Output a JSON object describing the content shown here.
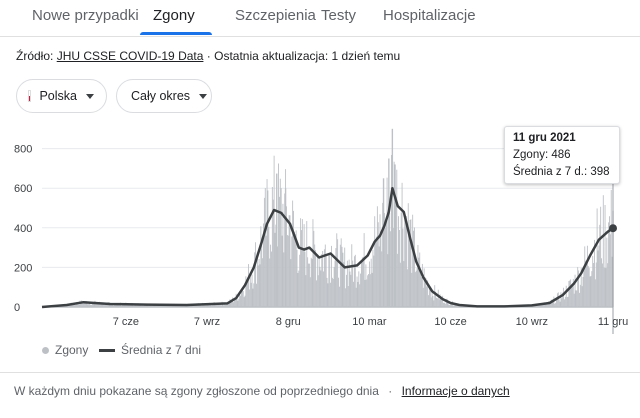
{
  "tabs": [
    {
      "label": "Nowe przypadki"
    },
    {
      "label": "Zgony"
    },
    {
      "label": "Szczepienia"
    },
    {
      "label": "Testy"
    },
    {
      "label": "Hospitalizacje"
    }
  ],
  "active_tab": "Zgony",
  "source": {
    "prefix": "Źródło:",
    "link": "JHU CSSE COVID-19 Data",
    "separator": "·",
    "updated": "Ostatnia aktualizacja: 1 dzień temu"
  },
  "filters": {
    "country": "Polska",
    "period": "Cały okres"
  },
  "tooltip": {
    "date": "11 gru 2021",
    "deaths": "Zgony: 486",
    "average": "Średnia z 7 d.: 398"
  },
  "legend": {
    "bars": "Zgony",
    "line": "Średnia z 7 dni"
  },
  "footer": {
    "text": "W każdym dniu pokazane są zgony zgłoszone od poprzedniego dnia",
    "separator": "·",
    "link": "Informacje o danych"
  },
  "colors": {
    "bars": "#bdc1c6",
    "line": "#3c4043",
    "accent": "#1a73e8"
  },
  "chart_data": {
    "type": "bar",
    "x_ticks": [
      "7 cze",
      "7 wrz",
      "8 gru",
      "10 mar",
      "10 cze",
      "10 wrz",
      "11 gru"
    ],
    "y_ticks": [
      "800",
      "600",
      "400",
      "200",
      "0"
    ],
    "ylim": [
      0,
      900
    ],
    "series": [
      {
        "name": "Średnia z 7 dni",
        "type": "line",
        "x": [
          "2020-03-04",
          "2020-04-01",
          "2020-04-20",
          "2020-05-20",
          "2020-07-01",
          "2020-08-15",
          "2020-09-30",
          "2020-10-10",
          "2020-10-20",
          "2020-10-30",
          "2020-11-08",
          "2020-11-14",
          "2020-11-22",
          "2020-11-30",
          "2020-12-10",
          "2020-12-20",
          "2020-12-26",
          "2021-01-01",
          "2021-01-12",
          "2021-01-25",
          "2021-02-10",
          "2021-02-24",
          "2021-03-08",
          "2021-03-16",
          "2021-03-22",
          "2021-03-27",
          "2021-04-01",
          "2021-04-05",
          "2021-04-11",
          "2021-04-18",
          "2021-04-25",
          "2021-05-02",
          "2021-05-10",
          "2021-05-20",
          "2021-06-01",
          "2021-06-10",
          "2021-06-20",
          "2021-07-10",
          "2021-08-10",
          "2021-09-10",
          "2021-09-30",
          "2021-10-15",
          "2021-10-28",
          "2021-11-05",
          "2021-11-15",
          "2021-11-25",
          "2021-12-05",
          "2021-12-11"
        ],
        "y": [
          0,
          10,
          24,
          15,
          12,
          10,
          18,
          45,
          110,
          200,
          330,
          420,
          490,
          475,
          420,
          300,
          290,
          300,
          250,
          270,
          200,
          210,
          260,
          330,
          360,
          410,
          480,
          600,
          510,
          480,
          350,
          230,
          150,
          80,
          40,
          20,
          10,
          3,
          3,
          8,
          20,
          60,
          120,
          170,
          260,
          340,
          380,
          398
        ]
      },
      {
        "name": "Zgony",
        "type": "bar",
        "x": [
          "2020-11-25",
          "2020-12-05",
          "2021-03-26",
          "2021-04-01",
          "2021-04-05",
          "2021-04-08",
          "2021-12-11"
        ],
        "y": [
          674,
          600,
          650,
          750,
          900,
          720,
          486
        ]
      }
    ]
  }
}
